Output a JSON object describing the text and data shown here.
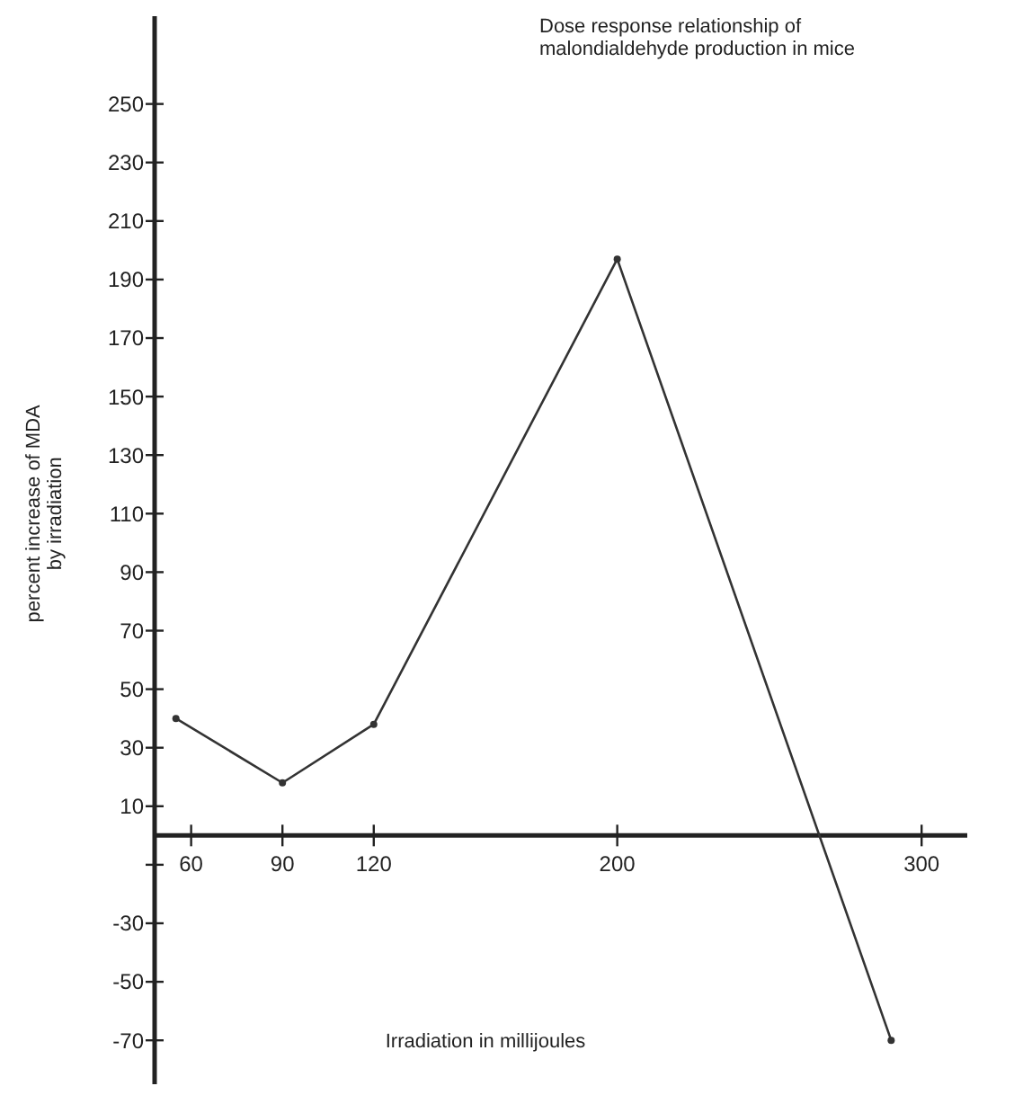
{
  "chart_data": {
    "type": "line",
    "title": "Dose response relationship of malondialdehyde production in mice",
    "xlabel": "Irradiation in millijoules",
    "ylabel": "percent increase of MDA by irradiation",
    "x": [
      55,
      90,
      120,
      200,
      290
    ],
    "series": [
      {
        "color": "#333333",
        "values": [
          40,
          18,
          38,
          197,
          -70
        ]
      }
    ],
    "xlim": [
      48,
      315
    ],
    "xticks": [
      60,
      90,
      120,
      200,
      300
    ],
    "ylim": [
      -85,
      280
    ],
    "yticks": [
      250,
      230,
      210,
      190,
      170,
      150,
      130,
      110,
      90,
      70,
      50,
      30,
      10,
      {
        "value": -10,
        "label": null
      },
      -30,
      -50,
      -70
    ],
    "grid": false,
    "marker": "circle",
    "line_style": "solid"
  }
}
